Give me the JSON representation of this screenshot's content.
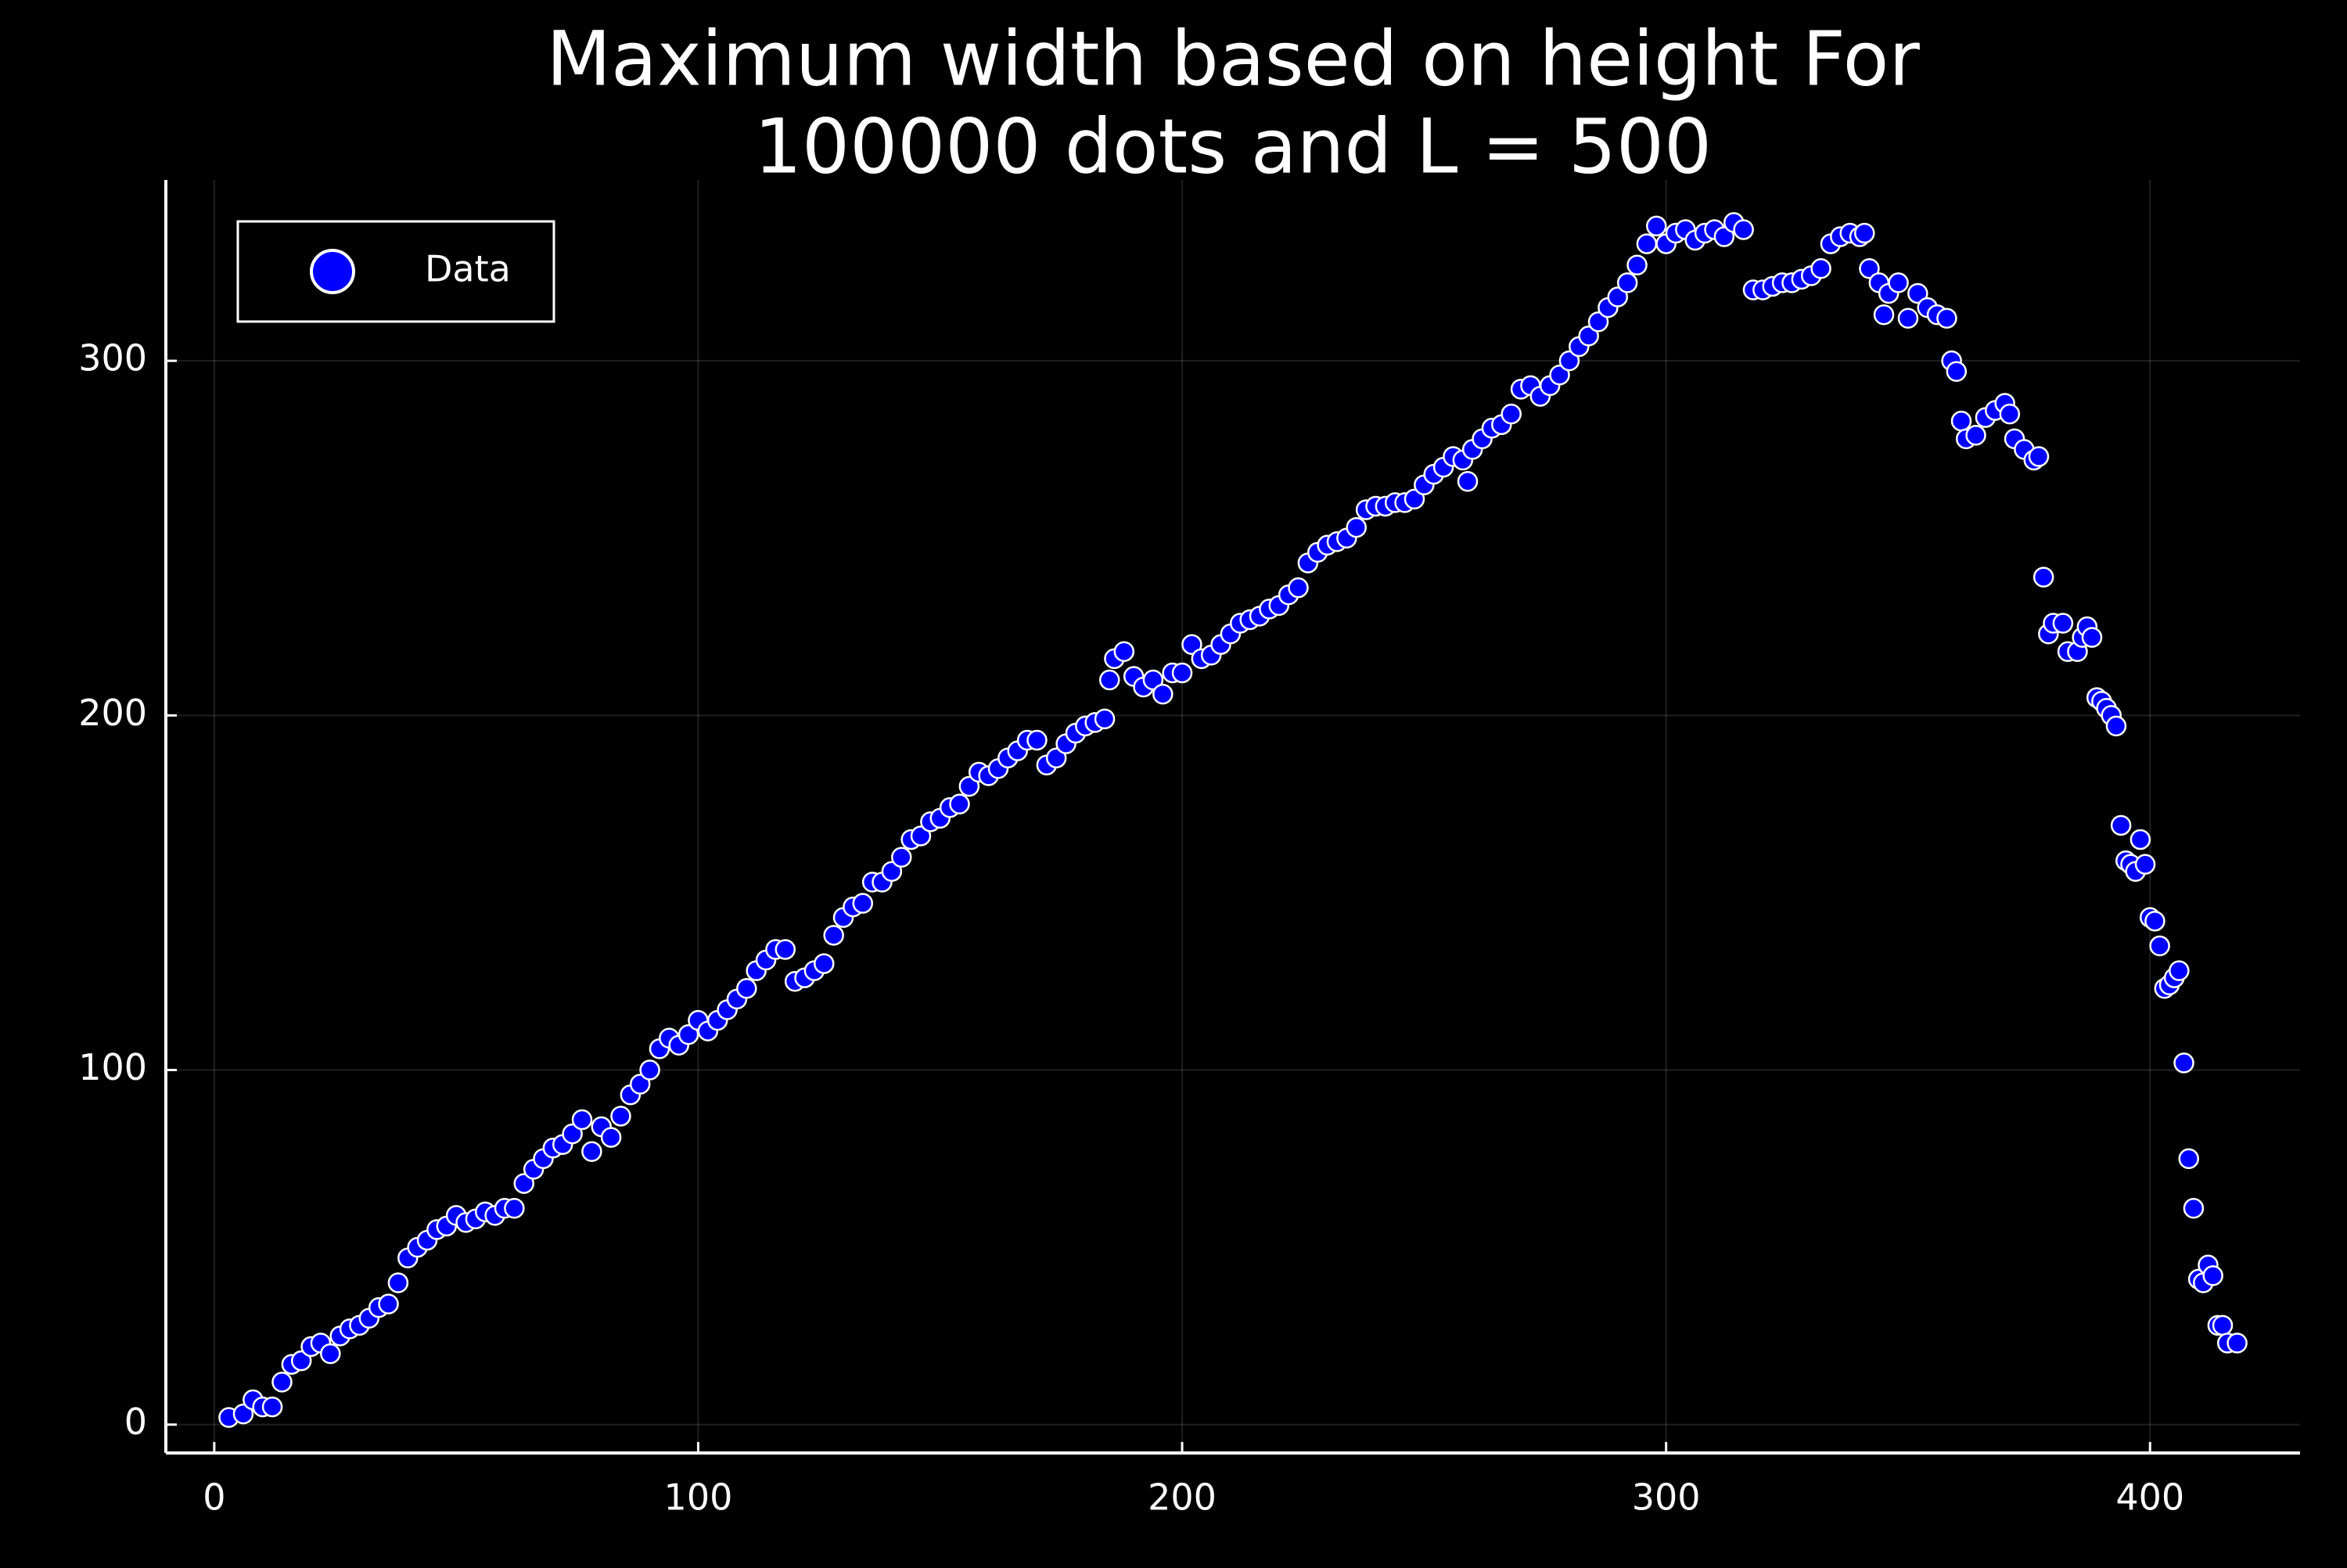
{
  "chart_data": {
    "type": "scatter",
    "title": [
      "Maximum width based on height For",
      "100000 dots and L = 500"
    ],
    "xlim": [
      -10,
      431
    ],
    "ylim": [
      -8,
      351
    ],
    "xticks": [
      0,
      100,
      200,
      300,
      400
    ],
    "yticks": [
      0,
      100,
      200,
      300
    ],
    "grid": true,
    "legend": "top-left",
    "series": [
      {
        "name": "Data",
        "color": "#0000ff",
        "x": [
          3,
          6,
          8,
          10,
          12,
          14,
          16,
          18,
          20,
          22,
          24,
          26,
          28,
          30,
          32,
          34,
          36,
          38,
          40,
          42,
          44,
          46,
          48,
          50,
          52,
          54,
          56,
          58,
          60,
          62,
          64,
          66,
          68,
          70,
          72,
          74,
          76,
          78,
          80,
          82,
          84,
          86,
          88,
          90,
          92,
          94,
          96,
          98,
          100,
          102,
          104,
          106,
          108,
          110,
          112,
          114,
          116,
          118,
          120,
          122,
          124,
          126,
          128,
          130,
          132,
          134,
          136,
          138,
          140,
          142,
          144,
          146,
          148,
          150,
          152,
          154,
          156,
          158,
          160,
          162,
          164,
          166,
          168,
          170,
          172,
          174,
          176,
          178,
          180,
          182,
          184,
          185,
          186,
          188,
          190,
          192,
          194,
          196,
          198,
          200,
          202,
          204,
          206,
          208,
          210,
          212,
          214,
          216,
          218,
          220,
          222,
          224,
          226,
          228,
          230,
          232,
          234,
          236,
          238,
          240,
          242,
          244,
          246,
          248,
          250,
          252,
          254,
          256,
          258,
          259,
          260,
          262,
          264,
          266,
          268,
          270,
          272,
          274,
          276,
          278,
          280,
          282,
          284,
          286,
          288,
          290,
          292,
          294,
          296,
          298,
          300,
          302,
          304,
          306,
          308,
          310,
          312,
          314,
          316,
          318,
          320,
          322,
          324,
          326,
          328,
          330,
          332,
          334,
          336,
          338,
          340,
          341,
          342,
          344,
          345,
          346,
          348,
          350,
          352,
          354,
          356,
          358,
          359,
          360,
          361,
          362,
          364,
          366,
          368,
          370,
          371,
          372,
          374,
          376,
          377,
          378,
          379,
          380,
          382,
          383,
          385,
          386,
          387,
          388,
          389,
          390,
          391,
          392,
          393,
          394,
          395,
          396,
          397,
          398,
          399,
          400,
          401,
          402,
          403,
          404,
          405,
          406,
          407,
          408,
          409,
          410,
          411,
          412,
          413,
          414,
          415,
          416,
          418
        ],
        "values": [
          2,
          3,
          7,
          5,
          5,
          12,
          17,
          18,
          22,
          23,
          20,
          25,
          27,
          28,
          30,
          33,
          34,
          40,
          47,
          50,
          52,
          55,
          56,
          59,
          57,
          58,
          60,
          59,
          61,
          61,
          68,
          72,
          75,
          78,
          79,
          82,
          86,
          77,
          84,
          81,
          87,
          93,
          96,
          100,
          106,
          109,
          107,
          110,
          114,
          111,
          114,
          117,
          120,
          123,
          128,
          131,
          134,
          134,
          125,
          126,
          128,
          130,
          138,
          143,
          146,
          147,
          153,
          153,
          156,
          160,
          165,
          166,
          170,
          171,
          174,
          175,
          180,
          184,
          183,
          185,
          188,
          190,
          193,
          193,
          186,
          188,
          192,
          195,
          197,
          198,
          199,
          210,
          216,
          218,
          211,
          208,
          210,
          206,
          212,
          212,
          220,
          216,
          217,
          220,
          223,
          226,
          227,
          228,
          230,
          231,
          234,
          236,
          243,
          246,
          248,
          249,
          250,
          253,
          258,
          259,
          259,
          260,
          260,
          261,
          265,
          268,
          270,
          273,
          272,
          266,
          275,
          278,
          281,
          282,
          285,
          292,
          293,
          290,
          293,
          296,
          300,
          304,
          307,
          311,
          315,
          318,
          322,
          327,
          333,
          338,
          333,
          336,
          337,
          334,
          336,
          337,
          335,
          339,
          337,
          320,
          320,
          321,
          322,
          322,
          323,
          324,
          326,
          333,
          335,
          336,
          335,
          336,
          326,
          322,
          313,
          319,
          322,
          312,
          319,
          315,
          313,
          312,
          300,
          297,
          283,
          278,
          279,
          284,
          286,
          288,
          285,
          278,
          275,
          272,
          273,
          239,
          223,
          226,
          226,
          218,
          218,
          222,
          225,
          222,
          205,
          204,
          202,
          200,
          197,
          169,
          159,
          158,
          156,
          165,
          158,
          143,
          142,
          135,
          123,
          124,
          126,
          128,
          102,
          75,
          61,
          41,
          40,
          45,
          42,
          28,
          28,
          23,
          23
        ]
      }
    ]
  }
}
